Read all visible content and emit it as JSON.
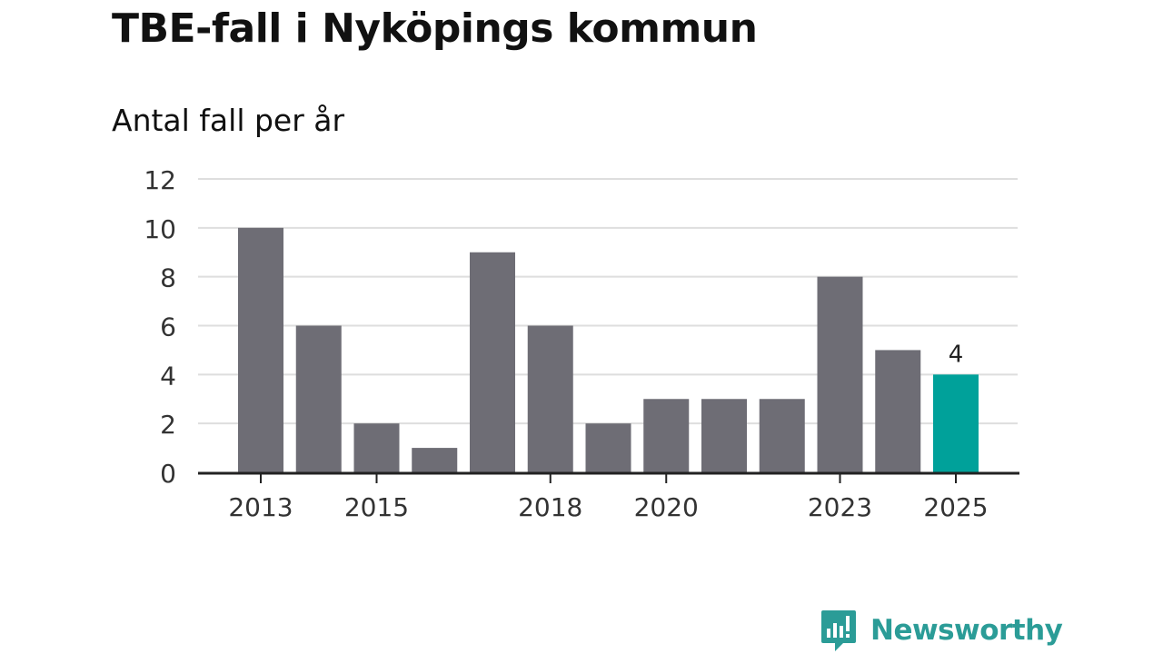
{
  "chart_data": {
    "type": "bar",
    "title": "TBE-fall i Nyköpings kommun",
    "subtitle": "Antal fall per år",
    "xlabel": "",
    "ylabel": "",
    "categories": [
      "2013",
      "2014",
      "2015",
      "2016",
      "2017",
      "2018",
      "2019",
      "2020",
      "2021",
      "2022",
      "2023",
      "2024",
      "2025"
    ],
    "values": [
      10,
      6,
      2,
      1,
      9,
      6,
      2,
      3,
      3,
      3,
      8,
      5,
      4
    ],
    "x_tick_labels": [
      "2013",
      "2015",
      "2018",
      "2020",
      "2023",
      "2025"
    ],
    "y_ticks": [
      0,
      2,
      4,
      6,
      8,
      10,
      12
    ],
    "ylim": [
      0,
      12
    ],
    "grid": "horizontal",
    "highlight": {
      "category": "2025",
      "label": "4"
    },
    "colors": {
      "bar": "#6e6d75",
      "highlight_bar": "#00a19a",
      "grid": "#dedede",
      "axis": "#222222",
      "text": "#333333"
    }
  },
  "brand": {
    "name": "Newsworthy",
    "logo_icon": "newsworthy-chart-bubble-icon",
    "color": "#2b9c97"
  }
}
